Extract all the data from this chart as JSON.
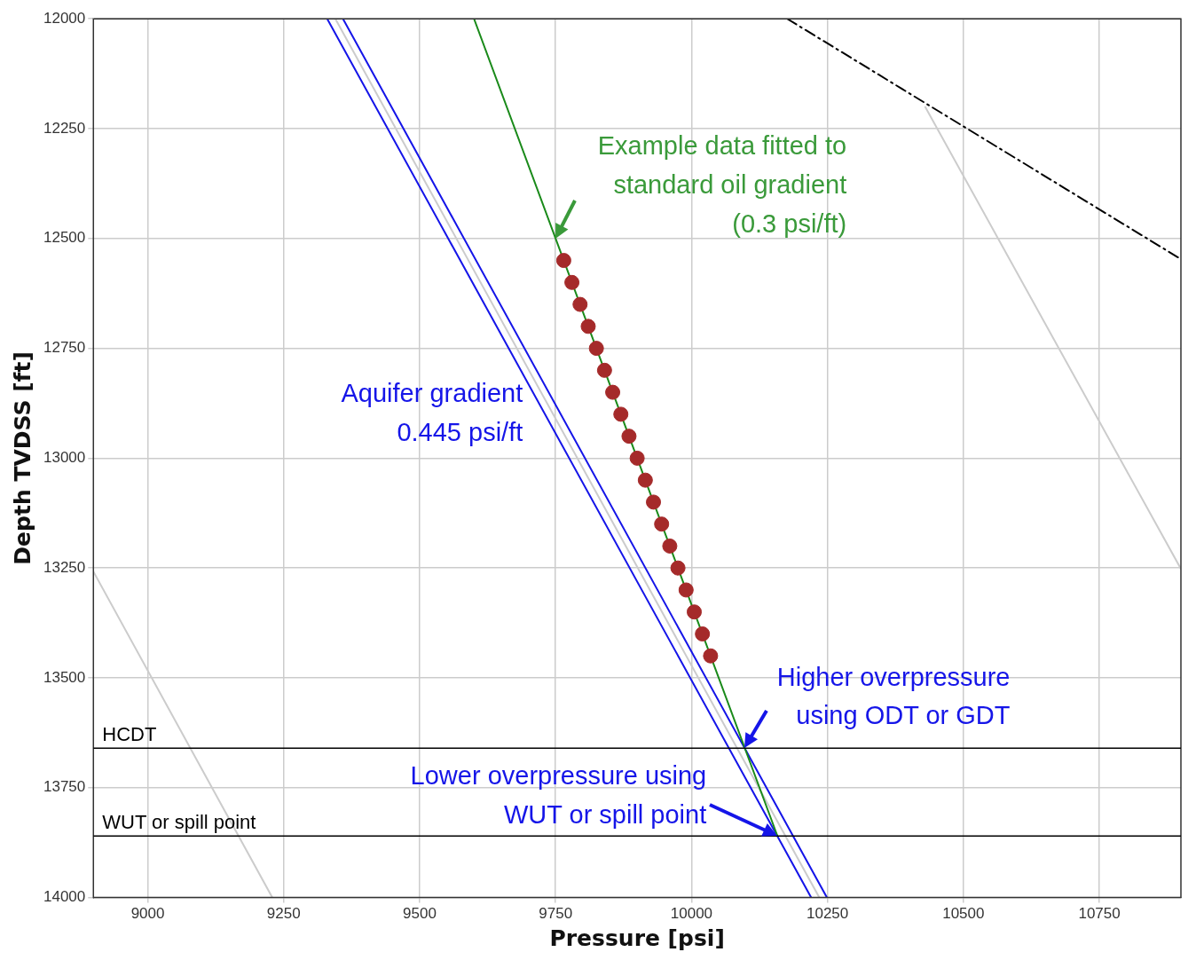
{
  "chart_data": {
    "type": "line",
    "xlabel": "Pressure [psi]",
    "ylabel": "Depth TVDSS [ft]",
    "xlim": [
      8900,
      10900
    ],
    "xticks": [
      9000,
      9250,
      9500,
      9750,
      10000,
      10250,
      10500,
      10750
    ],
    "ylim": [
      14000,
      12000
    ],
    "yticks": [
      12000,
      12250,
      12500,
      12750,
      13000,
      13250,
      13500,
      13750,
      14000
    ],
    "grid": true,
    "legend": false,
    "series": [
      {
        "color": "#cccccc",
        "x": [
          8900,
          9229
        ],
        "values": [
          13258,
          14000
        ]
      },
      {
        "color": "#cccccc",
        "x": [
          10430,
          10900
        ],
        "values": [
          12201,
          13252
        ]
      },
      {
        "color": "#000000",
        "line_style": "dashdot",
        "x": [
          10176,
          10900
        ],
        "values": [
          12000,
          12547
        ]
      },
      {
        "color": "#cccccc",
        "x": [
          9345,
          10235
        ],
        "values": [
          12000,
          14000
        ]
      },
      {
        "color": "#1515e8",
        "x": [
          9330,
          10220
        ],
        "values": [
          12000,
          14000
        ]
      },
      {
        "color": "#1515e8",
        "x": [
          9359,
          10249
        ],
        "values": [
          12000,
          14000
        ]
      },
      {
        "color": "#1a8a1a",
        "x": [
          9600,
          10158
        ],
        "values": [
          12000,
          13860
        ]
      },
      {
        "type": "scatter",
        "color": "#a52a2a",
        "marker": "circle",
        "x": [
          9765,
          9780,
          9795,
          9810,
          9825,
          9840,
          9855,
          9870,
          9885,
          9900,
          9915,
          9930,
          9945,
          9960,
          9975,
          9990,
          10005,
          10020,
          10035
        ],
        "values": [
          12550,
          12600,
          12650,
          12700,
          12750,
          12800,
          12850,
          12900,
          12950,
          13000,
          13050,
          13100,
          13150,
          13200,
          13250,
          13300,
          13350,
          13400,
          13450
        ]
      }
    ],
    "ref_lines": [
      {
        "axis": "y",
        "value": 13660,
        "label": "HCDT",
        "color": "#000000"
      },
      {
        "axis": "y",
        "value": 13860,
        "label": "WUT or spill point",
        "color": "#000000"
      }
    ],
    "annotations": [
      {
        "text": "Example data fitted to\nstandard oil gradient\n(0.3 psi/ft)",
        "x": 9750,
        "y": 12500
      },
      "Aquifer gradient\n0.445 psi/ft",
      {
        "text": "Higher overpressure\nusing ODT or GDT",
        "x": 10098,
        "y": 13660
      },
      {
        "text": "Lower overpressure using\nWUT or spill point",
        "x": 10158,
        "y": 13860
      }
    ]
  }
}
